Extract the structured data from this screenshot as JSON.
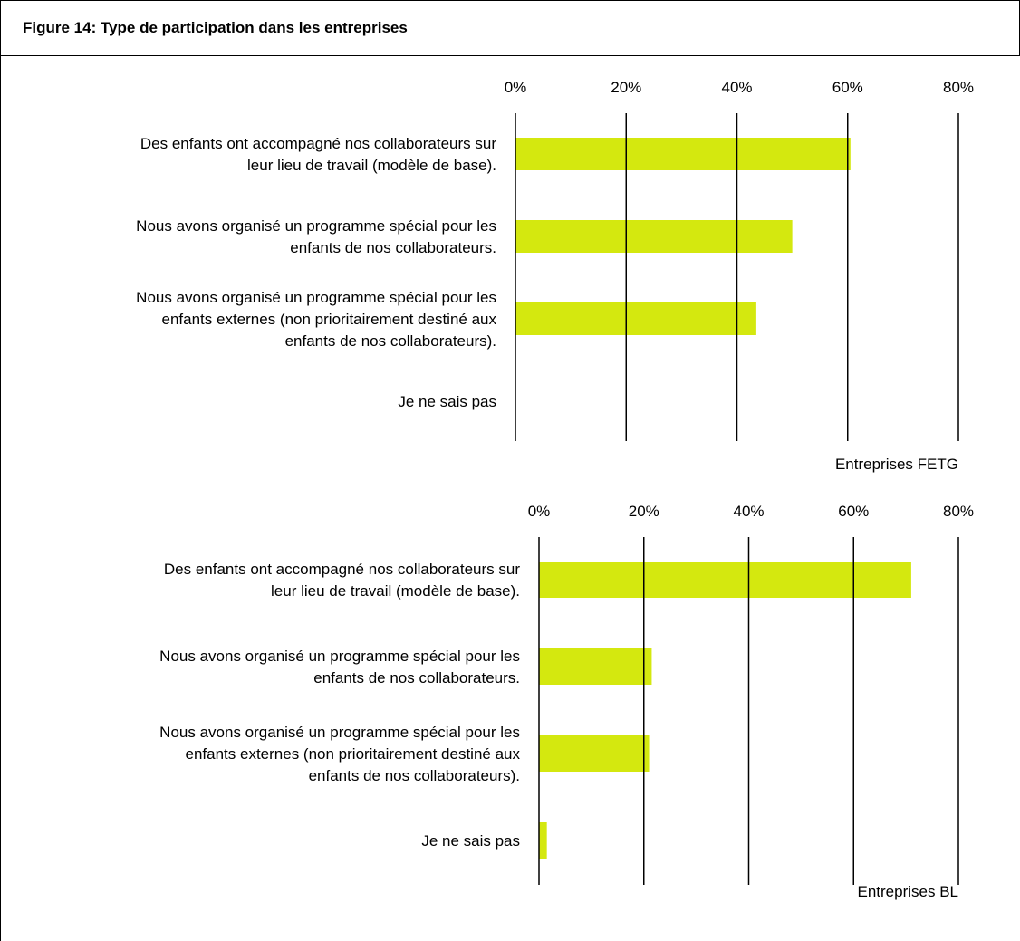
{
  "figure": {
    "title": "Figure 14: Type de participation dans les entreprises"
  },
  "colors": {
    "bar": "#d4e80f",
    "grid": "#000000"
  },
  "chart_data": [
    {
      "type": "bar",
      "orientation": "horizontal",
      "group_label": "Entreprises FETG",
      "categories": [
        [
          "Des enfants ont accompagné nos collaborateurs sur",
          "leur lieu de travail (modèle de base)."
        ],
        [
          "Nous avons organisé un programme spécial pour les",
          "enfants de nos collaborateurs."
        ],
        [
          "Nous avons organisé un programme spécial pour les",
          "enfants externes (non prioritairement destiné aux",
          "enfants de nos collaborateurs)."
        ],
        [
          "Je ne sais pas"
        ]
      ],
      "values": [
        60.5,
        50,
        43.5,
        0
      ],
      "xlim": [
        0,
        80
      ],
      "ticks": [
        "0%",
        "20%",
        "40%",
        "60%",
        "80%"
      ],
      "tick_values": [
        0,
        20,
        40,
        60,
        80
      ],
      "grid": true
    },
    {
      "type": "bar",
      "orientation": "horizontal",
      "group_label": "Entreprises BL",
      "categories": [
        [
          "Des enfants ont accompagné nos collaborateurs sur",
          "leur lieu de travail (modèle de base)."
        ],
        [
          "Nous avons organisé un programme spécial pour les",
          "enfants de nos collaborateurs."
        ],
        [
          "Nous avons organisé un programme spécial pour les",
          "enfants externes (non prioritairement destiné aux",
          "enfants de nos collaborateurs)."
        ],
        [
          "Je ne sais pas"
        ]
      ],
      "values": [
        71,
        21.5,
        21,
        1.5
      ],
      "xlim": [
        0,
        80
      ],
      "ticks": [
        "0%",
        "20%",
        "40%",
        "60%",
        "80%"
      ],
      "tick_values": [
        0,
        20,
        40,
        60,
        80
      ],
      "grid": true
    }
  ]
}
